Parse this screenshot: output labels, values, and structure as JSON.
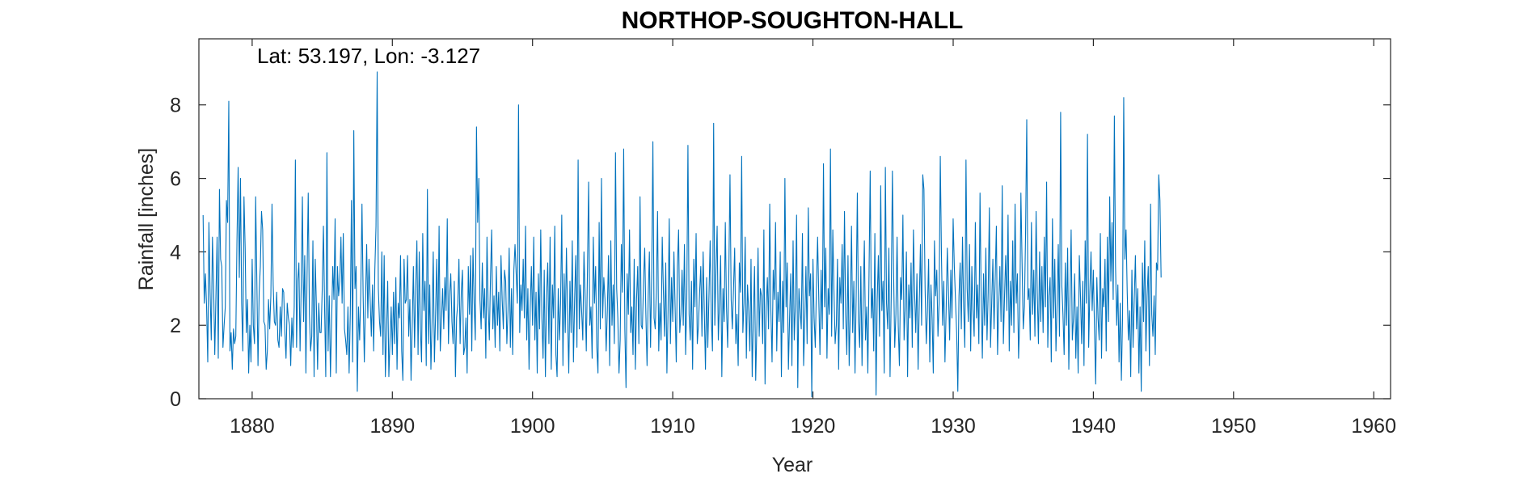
{
  "chart_data": {
    "type": "line",
    "title": "NORTHOP-SOUGHTON-HALL",
    "xlabel": "Year",
    "ylabel": "Rainfall [inches]",
    "annotation": "Lat: 53.197, Lon: -3.127",
    "xlim": [
      1876.2,
      1961.2
    ],
    "ylim": [
      0,
      9.8
    ],
    "xticks": [
      1880,
      1890,
      1900,
      1910,
      1920,
      1930,
      1940,
      1950,
      1960
    ],
    "yticks": [
      0,
      2,
      4,
      6,
      8
    ],
    "grid": false,
    "line_color": "#0072BD",
    "series": [
      {
        "frequency": "monthly",
        "start": 1876.5,
        "values": [
          5.0,
          2.6,
          3.4,
          2.5,
          1.0,
          4.8,
          2.9,
          1.6,
          4.4,
          3.1,
          1.2,
          2.8,
          4.4,
          1.1,
          5.7,
          3.8,
          3.6,
          1.4,
          2.0,
          2.5,
          5.4,
          4.8,
          8.1,
          1.3,
          1.8,
          0.8,
          1.9,
          1.5,
          1.7,
          4.3,
          6.3,
          3.3,
          6.0,
          2.6,
          1.3,
          5.5,
          4.1,
          1.8,
          2.7,
          0.7,
          2.0,
          1.0,
          3.8,
          2.0,
          1.5,
          5.5,
          3.2,
          0.9,
          2.9,
          3.6,
          5.1,
          4.6,
          2.1,
          2.0,
          0.8,
          1.3,
          2.7,
          1.9,
          2.8,
          5.3,
          3.1,
          2.1,
          2.0,
          2.9,
          1.6,
          1.4,
          2.5,
          1.7,
          3.0,
          2.9,
          1.8,
          1.1,
          2.6,
          2.2,
          2.0,
          0.9,
          2.2,
          1.4,
          2.5,
          6.5,
          1.4,
          3.2,
          3.7,
          1.3,
          3.1,
          5.5,
          2.1,
          3.9,
          0.7,
          3.4,
          5.6,
          2.3,
          1.3,
          1.7,
          4.3,
          0.6,
          3.8,
          2.5,
          0.8,
          2.6,
          1.8,
          1.8,
          3.0,
          4.7,
          2.5,
          0.6,
          6.7,
          1.3,
          2.8,
          0.6,
          2.1,
          3.6,
          2.7,
          4.9,
          0.7,
          3.6,
          2.8,
          3.2,
          4.4,
          2.6,
          4.5,
          1.9,
          1.6,
          1.2,
          2.5,
          0.7,
          2.3,
          5.4,
          1.0,
          7.3,
          3.0,
          3.6,
          0.2,
          2.5,
          1.6,
          2.9,
          5.3,
          2.8,
          1.0,
          2.6,
          4.2,
          2.2,
          3.8,
          2.7,
          1.7,
          3.1,
          1.3,
          3.5,
          4.7,
          8.9,
          3.0,
          2.1,
          1.7,
          4.0,
          1.2,
          3.9,
          0.6,
          1.8,
          3.2,
          0.6,
          1.6,
          2.5,
          1.2,
          2.9,
          1.5,
          3.3,
          0.8,
          2.6,
          2.2,
          3.9,
          1.3,
          0.5,
          3.8,
          2.6,
          2.7,
          3.9,
          1.7,
          2.7,
          0.5,
          2.0,
          3.6,
          1.4,
          3.0,
          4.3,
          1.2,
          4.0,
          1.9,
          1.0,
          4.5,
          2.4,
          3.2,
          0.9,
          5.7,
          1.5,
          3.1,
          0.8,
          2.1,
          4.0,
          1.0,
          2.3,
          3.8,
          1.6,
          4.7,
          1.3,
          2.1,
          3.0,
          1.9,
          3.3,
          2.4,
          4.9,
          1.5,
          2.8,
          3.4,
          2.1,
          1.5,
          3.2,
          0.6,
          2.2,
          2.6,
          3.8,
          1.5,
          2.9,
          3.5,
          1.2,
          1.4,
          2.2,
          0.7,
          3.6,
          2.3,
          3.9,
          1.3,
          4.1,
          2.6,
          1.6,
          7.4,
          4.8,
          6.0,
          2.7,
          1.9,
          3.7,
          2.2,
          3.0,
          1.1,
          4.4,
          2.5,
          1.6,
          3.3,
          4.6,
          1.9,
          2.8,
          1.4,
          3.6,
          2.0,
          2.9,
          1.3,
          3.9,
          2.7,
          1.9,
          3.5,
          3.2,
          1.5,
          2.4,
          4.1,
          1.4,
          3.0,
          1.2,
          3.5,
          4.2,
          3.4,
          2.6,
          8.0,
          1.8,
          3.1,
          2.4,
          3.8,
          2.2,
          4.7,
          1.6,
          3.0,
          0.8,
          2.5,
          3.6,
          2.0,
          4.4,
          1.6,
          2.9,
          0.7,
          3.4,
          1.9,
          4.6,
          2.2,
          1.1,
          3.5,
          0.6,
          2.8,
          3.7,
          1.5,
          4.4,
          0.8,
          3.1,
          2.2,
          4.7,
          1.2,
          0.6,
          3.0,
          1.6,
          2.6,
          5.0,
          0.9,
          3.4,
          1.8,
          4.1,
          2.3,
          0.7,
          3.2,
          1.8,
          4.3,
          1.0,
          2.7,
          3.9,
          1.4,
          6.5,
          1.9,
          3.1,
          2.4,
          1.6,
          4.0,
          2.8,
          1.3,
          3.5,
          5.9,
          2.0,
          2.5,
          1.1,
          4.4,
          2.6,
          3.6,
          1.4,
          0.7,
          4.8,
          1.9,
          6.0,
          2.2,
          3.3,
          2.7,
          1.3,
          2.4,
          3.9,
          0.9,
          4.3,
          2.0,
          3.1,
          1.5,
          6.7,
          3.0,
          2.2,
          0.7,
          1.6,
          4.2,
          2.9,
          6.8,
          1.9,
          0.3,
          3.4,
          2.3,
          4.6,
          1.8,
          2.5,
          1.2,
          3.8,
          0.8,
          2.7,
          3.6,
          1.5,
          5.5,
          2.0,
          1.9,
          3.2,
          4.1,
          2.3,
          0.9,
          2.8,
          4.0,
          1.4,
          3.4,
          7.0,
          2.2,
          1.9,
          3.0,
          5.1,
          1.3,
          2.6,
          1.6,
          4.4,
          2.9,
          1.7,
          3.7,
          0.7,
          2.4,
          4.9,
          1.5,
          3.3,
          2.1,
          4.0,
          2.5,
          1.0,
          3.6,
          4.6,
          1.8,
          2.3,
          3.5,
          2.0,
          4.2,
          1.2,
          2.7,
          6.9,
          2.3,
          1.6,
          3.2,
          0.8,
          3.8,
          2.5,
          4.5,
          1.5,
          2.0,
          2.9,
          3.6,
          1.7,
          4.0,
          2.4,
          0.8,
          3.3,
          1.4,
          2.8,
          4.3,
          2.2,
          1.3,
          7.5,
          2.0,
          3.5,
          4.7,
          1.6,
          2.6,
          3.9,
          0.6,
          3.0,
          2.1,
          4.8,
          2.5,
          1.4,
          3.4,
          6.1,
          2.7,
          1.9,
          3.0,
          4.1,
          1.5,
          2.3,
          0.9,
          3.7,
          2.9,
          6.6,
          1.8,
          2.6,
          4.4,
          1.1,
          3.1,
          2.4,
          1.3,
          3.8,
          0.6,
          2.2,
          3.6,
          0.5,
          2.0,
          4.1,
          1.7,
          3.0,
          2.8,
          1.5,
          4.6,
          0.4,
          2.5,
          3.3,
          1.9,
          5.3,
          2.4,
          1.0,
          3.5,
          2.7,
          4.8,
          1.3,
          2.9,
          2.1,
          4.0,
          0.6,
          3.2,
          1.8,
          6.0,
          2.5,
          3.7,
          0.8,
          2.2,
          3.4,
          0.9,
          4.3,
          1.6,
          2.6,
          5.0,
          0.3,
          3.0,
          2.4,
          1.9,
          4.5,
          0.9,
          2.1,
          3.6,
          1.5,
          5.2,
          2.8,
          3.4,
          0.05,
          3.8,
          2.2,
          1.4,
          3.1,
          4.4,
          2.7,
          1.2,
          3.5,
          1.9,
          6.4,
          2.5,
          4.1,
          1.1,
          3.0,
          2.3,
          6.8,
          1.7,
          4.6,
          2.9,
          1.5,
          2.0,
          3.8,
          0.8,
          3.3,
          2.6,
          4.2,
          1.9,
          5.1,
          2.3,
          1.2,
          3.9,
          0.9,
          2.4,
          4.7,
          1.8,
          3.2,
          0.7,
          2.8,
          5.6,
          2.1,
          1.4,
          3.6,
          0.9,
          2.7,
          4.3,
          1.6,
          2.5,
          0.7,
          3.4,
          6.2,
          2.2,
          3.0,
          1.3,
          4.5,
          0.1,
          2.7,
          3.9,
          1.7,
          5.8,
          2.4,
          3.2,
          0.7,
          6.3,
          2.6,
          1.9,
          4.1,
          0.6,
          2.8,
          6.2,
          3.5,
          1.4,
          2.3,
          4.4,
          2.0,
          0.9,
          3.3,
          2.7,
          5.0,
          1.6,
          2.5,
          4.0,
          0.6,
          3.1,
          2.2,
          3.7,
          1.4,
          4.6,
          2.9,
          1.8,
          3.4,
          0.8,
          2.6,
          4.2,
          2.0,
          6.1,
          5.7,
          3.0,
          1.5,
          2.4,
          3.8,
          1.0,
          3.1,
          2.2,
          0.7,
          4.3,
          2.8,
          3.5,
          1.7,
          2.6,
          6.6,
          3.9,
          2.0,
          3.2,
          1.0,
          2.4,
          4.1,
          2.9,
          1.6,
          3.5,
          2.2,
          4.9,
          3.6,
          2.7,
          1.8,
          0.2,
          2.8,
          3.7,
          1.9,
          4.4,
          2.5,
          1.4,
          6.5,
          3.0,
          2.1,
          4.2,
          1.3,
          3.6,
          2.4,
          1.7,
          4.8,
          2.2,
          3.1,
          1.5,
          5.6,
          2.7,
          1.1,
          3.4,
          2.0,
          4.1,
          1.6,
          2.9,
          5.2,
          1.4,
          2.6,
          3.8,
          1.9,
          3.3,
          4.7,
          1.2,
          2.5,
          3.6,
          2.1,
          5.8,
          1.5,
          2.8,
          3.9,
          2.4,
          5.0,
          1.3,
          3.2,
          2.0,
          4.3,
          1.8,
          5.3,
          2.6,
          3.4,
          1.1,
          2.2,
          5.6,
          3.7,
          1.9,
          2.5,
          4.5,
          7.6,
          2.7,
          3.0,
          1.6,
          4.8,
          2.3,
          3.5,
          1.7,
          5.1,
          2.9,
          1.5,
          4.0,
          2.1,
          3.6,
          1.8,
          4.4,
          2.5,
          5.9,
          1.4,
          2.8,
          3.3,
          1.0,
          4.9,
          2.2,
          3.8,
          1.3,
          2.6,
          4.2,
          1.7,
          7.8,
          3.1,
          2.3,
          1.2,
          3.7,
          2.0,
          4.1,
          0.8,
          2.7,
          4.6,
          1.6,
          2.2,
          3.4,
          1.1,
          2.5,
          0.7,
          3.9,
          2.8,
          1.5,
          3.2,
          0.9,
          4.3,
          2.6,
          7.2,
          1.4,
          2.9,
          4.0,
          2.4,
          3.5,
          1.9,
          0.4,
          3.3,
          2.2,
          1.6,
          4.5,
          1.1,
          3.0,
          2.5,
          3.8,
          1.3,
          4.4,
          2.1,
          5.5,
          3.2,
          4.8,
          2.7,
          7.7,
          3.6,
          2.0,
          3.1,
          1.0,
          2.6,
          0.5,
          2.2,
          8.2,
          3.8,
          4.6,
          2.9,
          1.6,
          2.4,
          0.6,
          3.5,
          1.4,
          2.7,
          3.9,
          1.9,
          3.0,
          0.7,
          2.5,
          0.2,
          3.7,
          2.1,
          4.3,
          1.3,
          2.8,
          3.6,
          0.9,
          5.3,
          2.3,
          1.7,
          2.8,
          1.2,
          3.7,
          3.5,
          6.1,
          5.4,
          3.3
        ]
      }
    ]
  }
}
